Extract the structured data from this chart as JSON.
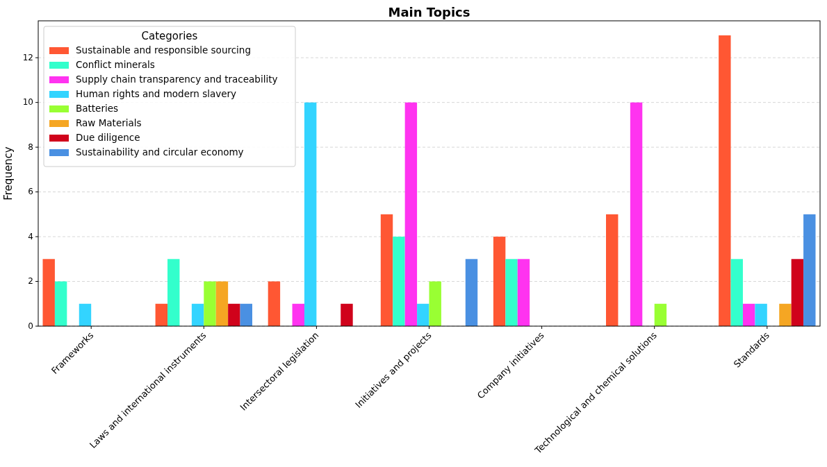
{
  "chart_data": {
    "type": "bar",
    "title": "Main Topics",
    "ylabel": "Frequency",
    "legend_title": "Categories",
    "categories": [
      "Frameworks",
      "Laws and international instruments",
      "Intersectoral legislation",
      "Initiatives and projects",
      "Company initiatives",
      "Technological and chemical solutions",
      "Standards"
    ],
    "series": [
      {
        "name": "Sustainable and responsible sourcing",
        "color": "#ff5733",
        "values": [
          3,
          1,
          2,
          5,
          4,
          5,
          13
        ]
      },
      {
        "name": "Conflict minerals",
        "color": "#33ffcc",
        "values": [
          2,
          3,
          0,
          4,
          3,
          0,
          3
        ]
      },
      {
        "name": "Supply chain transparency and traceability",
        "color": "#ff33f0",
        "values": [
          0,
          0,
          1,
          10,
          3,
          10,
          1
        ]
      },
      {
        "name": "Human rights and modern slavery",
        "color": "#33d4ff",
        "values": [
          1,
          1,
          10,
          1,
          0,
          0,
          1
        ]
      },
      {
        "name": "Batteries",
        "color": "#99ff33",
        "values": [
          0,
          2,
          0,
          2,
          0,
          1,
          0
        ]
      },
      {
        "name": "Raw Materials",
        "color": "#f5a623",
        "values": [
          0,
          2,
          0,
          0,
          0,
          0,
          1
        ]
      },
      {
        "name": "Due diligence",
        "color": "#d0021b",
        "values": [
          0,
          1,
          1,
          0,
          0,
          0,
          3
        ]
      },
      {
        "name": "Sustainability and circular economy",
        "color": "#4a90e2",
        "values": [
          0,
          1,
          0,
          3,
          0,
          0,
          5
        ]
      }
    ],
    "ylim": [
      0,
      13.65
    ],
    "yticks": [
      0,
      2,
      4,
      6,
      8,
      10,
      12
    ],
    "grid": "y",
    "legend": "top left"
  }
}
